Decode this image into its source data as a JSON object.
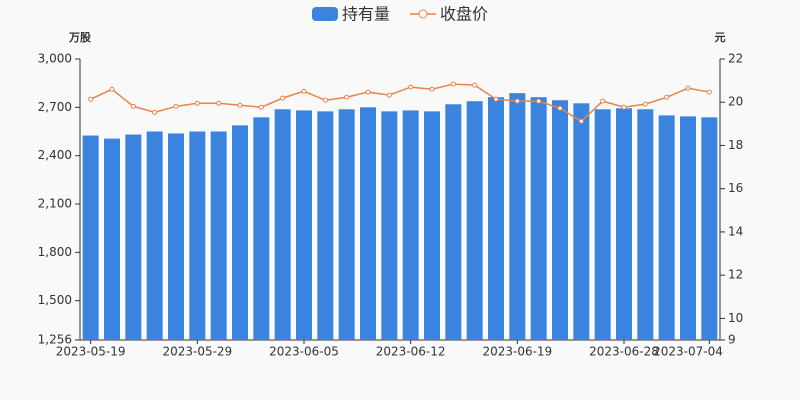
{
  "chart_data": {
    "type": "bar_line",
    "y_label": "万股",
    "y2_label": "元",
    "categories": [
      "2023-05-19",
      null,
      null,
      null,
      null,
      "2023-05-29",
      null,
      null,
      null,
      null,
      "2023-06-05",
      null,
      null,
      null,
      null,
      "2023-06-12",
      null,
      null,
      null,
      null,
      "2023-06-19",
      null,
      null,
      null,
      null,
      "2023-06-28",
      null,
      null,
      null,
      "2023-07-04"
    ],
    "series": [
      {
        "name": "持有量",
        "type": "bar",
        "color": "#3a84e0",
        "values": [
          2525,
          2506,
          2531,
          2550,
          2538,
          2550,
          2550,
          2588,
          2638,
          2688,
          2681,
          2675,
          2688,
          2700,
          2675,
          2681,
          2675,
          2719,
          2738,
          2763,
          2788,
          2763,
          2744,
          2725,
          2688,
          2694,
          2688,
          2650,
          2644,
          2638
        ]
      },
      {
        "name": "收盘价",
        "type": "line",
        "axis": "y2",
        "color": "#e9834a",
        "values": [
          20.14,
          20.6,
          19.81,
          19.53,
          19.81,
          19.95,
          19.95,
          19.86,
          19.77,
          20.19,
          20.51,
          20.09,
          20.23,
          20.47,
          20.33,
          20.7,
          20.6,
          20.84,
          20.79,
          20.14,
          20.05,
          20.05,
          19.72,
          19.12,
          20.05,
          19.77,
          19.91,
          20.23,
          20.65,
          20.47
        ]
      }
    ],
    "ylim": [
      1256,
      3000
    ],
    "yticks": [
      {
        "value": 1256,
        "label": "1,256"
      },
      {
        "value": 1500,
        "label": "1,500"
      },
      {
        "value": 1800,
        "label": "1,800"
      },
      {
        "value": 2100,
        "label": "2,100"
      },
      {
        "value": 2400,
        "label": "2,400"
      },
      {
        "value": 2700,
        "label": "2,700"
      },
      {
        "value": 3000,
        "label": "3,000"
      }
    ],
    "y2lim": [
      9,
      22
    ],
    "y2ticks": [
      9,
      10,
      12,
      14,
      16,
      18,
      20,
      22
    ],
    "legend": "top"
  }
}
